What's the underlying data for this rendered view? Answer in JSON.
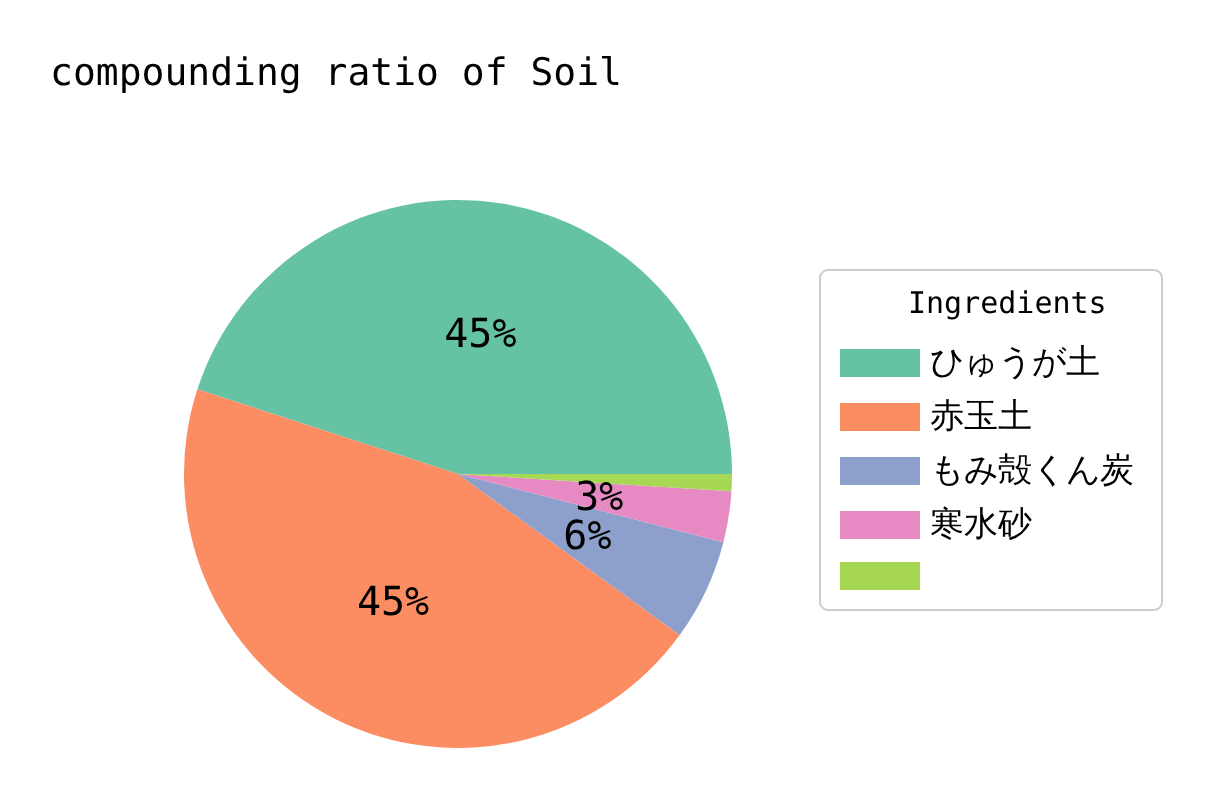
{
  "chart_data": {
    "type": "pie",
    "title": "compounding ratio of Soil",
    "legend_title": "Ingredients",
    "legend": "right",
    "categories": [
      "ひゅうが土",
      "赤玉土",
      "もみ殻くん炭",
      "寒水砂",
      null
    ],
    "values": [
      45,
      45,
      6,
      3,
      1
    ],
    "value_labels": [
      "45%",
      "45%",
      "6%",
      "3%",
      null
    ],
    "colors": [
      "#66c2a5",
      "#fc8d62",
      "#8da0cb",
      "#e78ac3",
      "#a6d854"
    ]
  }
}
